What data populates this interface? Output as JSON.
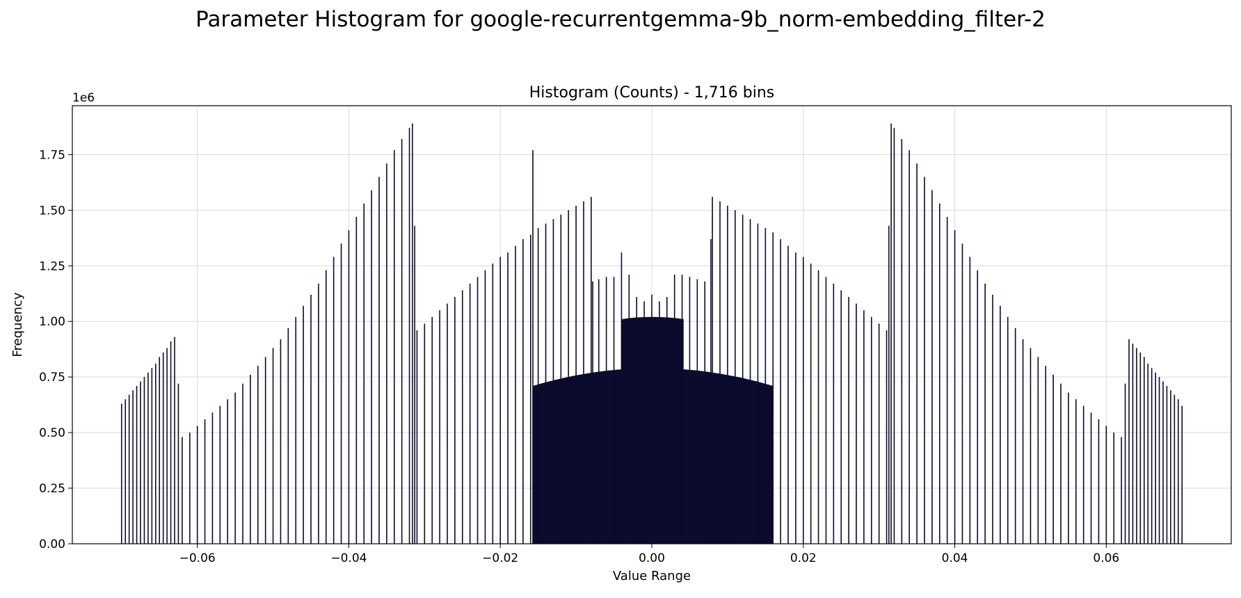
{
  "figure": {
    "suptitle": "Parameter Histogram for google-recurrentgemma-9b_norm-embedding_filter-2"
  },
  "chart_data": {
    "type": "bar",
    "title": "Histogram (Counts) - 1,716 bins",
    "xlabel": "Value Range",
    "ylabel": "Frequency",
    "y_offset_label": "1e6",
    "xlim": [
      -0.0765,
      0.0765
    ],
    "ylim": [
      0,
      1.97
    ],
    "x_ticks": [
      -0.06,
      -0.04,
      -0.02,
      0.0,
      0.02,
      0.04,
      0.06
    ],
    "x_tick_labels": [
      "−0.06",
      "−0.04",
      "−0.02",
      "0.00",
      "0.02",
      "0.04",
      "0.06"
    ],
    "y_ticks": [
      0,
      0.25,
      0.5,
      0.75,
      1.0,
      1.25,
      1.5,
      1.75
    ],
    "y_tick_labels": [
      "0.00",
      "0.25",
      "0.50",
      "0.75",
      "1.00",
      "1.25",
      "1.50",
      "1.75"
    ],
    "grid": true,
    "bar_color": "#0b0b2e",
    "y_unit_multiplier": 1000000,
    "bins": [
      {
        "x": -0.07,
        "y": 0.63
      },
      {
        "x": -0.0695,
        "y": 0.65
      },
      {
        "x": -0.069,
        "y": 0.67
      },
      {
        "x": -0.0685,
        "y": 0.69
      },
      {
        "x": -0.068,
        "y": 0.71
      },
      {
        "x": -0.0675,
        "y": 0.73
      },
      {
        "x": -0.067,
        "y": 0.75
      },
      {
        "x": -0.0665,
        "y": 0.77
      },
      {
        "x": -0.066,
        "y": 0.79
      },
      {
        "x": -0.0655,
        "y": 0.81
      },
      {
        "x": -0.065,
        "y": 0.84
      },
      {
        "x": -0.0645,
        "y": 0.86
      },
      {
        "x": -0.064,
        "y": 0.88
      },
      {
        "x": -0.0635,
        "y": 0.91
      },
      {
        "x": -0.063,
        "y": 0.93
      },
      {
        "x": -0.0625,
        "y": 0.72
      },
      {
        "x": -0.062,
        "y": 0.48
      },
      {
        "x": -0.061,
        "y": 0.5
      },
      {
        "x": -0.06,
        "y": 0.53
      },
      {
        "x": -0.059,
        "y": 0.56
      },
      {
        "x": -0.058,
        "y": 0.59
      },
      {
        "x": -0.057,
        "y": 0.62
      },
      {
        "x": -0.056,
        "y": 0.65
      },
      {
        "x": -0.055,
        "y": 0.68
      },
      {
        "x": -0.054,
        "y": 0.72
      },
      {
        "x": -0.053,
        "y": 0.76
      },
      {
        "x": -0.052,
        "y": 0.8
      },
      {
        "x": -0.051,
        "y": 0.84
      },
      {
        "x": -0.05,
        "y": 0.88
      },
      {
        "x": -0.049,
        "y": 0.92
      },
      {
        "x": -0.048,
        "y": 0.97
      },
      {
        "x": -0.047,
        "y": 1.02
      },
      {
        "x": -0.046,
        "y": 1.07
      },
      {
        "x": -0.045,
        "y": 1.12
      },
      {
        "x": -0.044,
        "y": 1.17
      },
      {
        "x": -0.043,
        "y": 1.23
      },
      {
        "x": -0.042,
        "y": 1.29
      },
      {
        "x": -0.041,
        "y": 1.35
      },
      {
        "x": -0.04,
        "y": 1.41
      },
      {
        "x": -0.039,
        "y": 1.47
      },
      {
        "x": -0.038,
        "y": 1.53
      },
      {
        "x": -0.037,
        "y": 1.59
      },
      {
        "x": -0.036,
        "y": 1.65
      },
      {
        "x": -0.035,
        "y": 1.71
      },
      {
        "x": -0.034,
        "y": 1.77
      },
      {
        "x": -0.033,
        "y": 1.82
      },
      {
        "x": -0.032,
        "y": 1.87
      },
      {
        "x": -0.0316,
        "y": 1.89
      },
      {
        "x": -0.0313,
        "y": 1.43
      },
      {
        "x": -0.031,
        "y": 0.96
      },
      {
        "x": -0.03,
        "y": 0.99
      },
      {
        "x": -0.029,
        "y": 1.02
      },
      {
        "x": -0.028,
        "y": 1.05
      },
      {
        "x": -0.027,
        "y": 1.08
      },
      {
        "x": -0.026,
        "y": 1.11
      },
      {
        "x": -0.025,
        "y": 1.14
      },
      {
        "x": -0.024,
        "y": 1.17
      },
      {
        "x": -0.023,
        "y": 1.2
      },
      {
        "x": -0.022,
        "y": 1.23
      },
      {
        "x": -0.021,
        "y": 1.26
      },
      {
        "x": -0.02,
        "y": 1.29
      },
      {
        "x": -0.019,
        "y": 1.31
      },
      {
        "x": -0.018,
        "y": 1.34
      },
      {
        "x": -0.017,
        "y": 1.37
      },
      {
        "x": -0.016,
        "y": 1.39
      },
      {
        "x": -0.0157,
        "y": 1.77
      },
      {
        "x": -0.015,
        "y": 1.42
      },
      {
        "x": -0.014,
        "y": 1.44
      },
      {
        "x": -0.013,
        "y": 1.46
      },
      {
        "x": -0.012,
        "y": 1.48
      },
      {
        "x": -0.011,
        "y": 1.5
      },
      {
        "x": -0.01,
        "y": 1.52
      },
      {
        "x": -0.009,
        "y": 1.54
      },
      {
        "x": -0.008,
        "y": 1.56
      },
      {
        "x": -0.0078,
        "y": 1.18
      },
      {
        "x": -0.007,
        "y": 1.19
      },
      {
        "x": -0.006,
        "y": 1.2
      },
      {
        "x": -0.005,
        "y": 1.2
      },
      {
        "x": -0.004,
        "y": 1.31
      },
      {
        "x": -0.003,
        "y": 1.21
      },
      {
        "x": -0.002,
        "y": 1.11
      },
      {
        "x": -0.001,
        "y": 1.09
      },
      {
        "x": 0.0,
        "y": 1.12
      },
      {
        "x": 0.001,
        "y": 1.09
      },
      {
        "x": 0.002,
        "y": 1.11
      },
      {
        "x": 0.003,
        "y": 1.21
      },
      {
        "x": 0.004,
        "y": 1.21
      },
      {
        "x": 0.005,
        "y": 1.2
      },
      {
        "x": 0.006,
        "y": 1.19
      },
      {
        "x": 0.007,
        "y": 1.18
      },
      {
        "x": 0.0078,
        "y": 1.37
      },
      {
        "x": 0.008,
        "y": 1.56
      },
      {
        "x": 0.009,
        "y": 1.54
      },
      {
        "x": 0.01,
        "y": 1.52
      },
      {
        "x": 0.011,
        "y": 1.5
      },
      {
        "x": 0.012,
        "y": 1.48
      },
      {
        "x": 0.013,
        "y": 1.46
      },
      {
        "x": 0.014,
        "y": 1.44
      },
      {
        "x": 0.015,
        "y": 1.42
      },
      {
        "x": 0.016,
        "y": 1.4
      },
      {
        "x": 0.017,
        "y": 1.37
      },
      {
        "x": 0.018,
        "y": 1.34
      },
      {
        "x": 0.019,
        "y": 1.31
      },
      {
        "x": 0.02,
        "y": 1.29
      },
      {
        "x": 0.021,
        "y": 1.26
      },
      {
        "x": 0.022,
        "y": 1.23
      },
      {
        "x": 0.023,
        "y": 1.2
      },
      {
        "x": 0.024,
        "y": 1.17
      },
      {
        "x": 0.025,
        "y": 1.14
      },
      {
        "x": 0.026,
        "y": 1.11
      },
      {
        "x": 0.027,
        "y": 1.08
      },
      {
        "x": 0.028,
        "y": 1.05
      },
      {
        "x": 0.029,
        "y": 1.02
      },
      {
        "x": 0.03,
        "y": 0.99
      },
      {
        "x": 0.031,
        "y": 0.96
      },
      {
        "x": 0.0313,
        "y": 1.43
      },
      {
        "x": 0.0316,
        "y": 1.89
      },
      {
        "x": 0.032,
        "y": 1.87
      },
      {
        "x": 0.033,
        "y": 1.82
      },
      {
        "x": 0.034,
        "y": 1.77
      },
      {
        "x": 0.035,
        "y": 1.71
      },
      {
        "x": 0.036,
        "y": 1.65
      },
      {
        "x": 0.037,
        "y": 1.59
      },
      {
        "x": 0.038,
        "y": 1.53
      },
      {
        "x": 0.039,
        "y": 1.47
      },
      {
        "x": 0.04,
        "y": 1.41
      },
      {
        "x": 0.041,
        "y": 1.35
      },
      {
        "x": 0.042,
        "y": 1.29
      },
      {
        "x": 0.043,
        "y": 1.23
      },
      {
        "x": 0.044,
        "y": 1.17
      },
      {
        "x": 0.045,
        "y": 1.12
      },
      {
        "x": 0.046,
        "y": 1.07
      },
      {
        "x": 0.047,
        "y": 1.02
      },
      {
        "x": 0.048,
        "y": 0.97
      },
      {
        "x": 0.049,
        "y": 0.92
      },
      {
        "x": 0.05,
        "y": 0.88
      },
      {
        "x": 0.051,
        "y": 0.84
      },
      {
        "x": 0.052,
        "y": 0.8
      },
      {
        "x": 0.053,
        "y": 0.76
      },
      {
        "x": 0.054,
        "y": 0.72
      },
      {
        "x": 0.055,
        "y": 0.68
      },
      {
        "x": 0.056,
        "y": 0.65
      },
      {
        "x": 0.057,
        "y": 0.62
      },
      {
        "x": 0.058,
        "y": 0.59
      },
      {
        "x": 0.059,
        "y": 0.56
      },
      {
        "x": 0.06,
        "y": 0.53
      },
      {
        "x": 0.061,
        "y": 0.5
      },
      {
        "x": 0.062,
        "y": 0.48
      },
      {
        "x": 0.0625,
        "y": 0.72
      },
      {
        "x": 0.063,
        "y": 0.92
      },
      {
        "x": 0.0635,
        "y": 0.9
      },
      {
        "x": 0.064,
        "y": 0.88
      },
      {
        "x": 0.0645,
        "y": 0.86
      },
      {
        "x": 0.065,
        "y": 0.84
      },
      {
        "x": 0.0655,
        "y": 0.81
      },
      {
        "x": 0.066,
        "y": 0.79
      },
      {
        "x": 0.0665,
        "y": 0.77
      },
      {
        "x": 0.067,
        "y": 0.75
      },
      {
        "x": 0.0675,
        "y": 0.73
      },
      {
        "x": 0.068,
        "y": 0.71
      },
      {
        "x": 0.0685,
        "y": 0.69
      },
      {
        "x": 0.069,
        "y": 0.67
      },
      {
        "x": 0.0695,
        "y": 0.65
      },
      {
        "x": 0.07,
        "y": 0.62
      }
    ],
    "dense_regions": [
      {
        "x0": -0.0157,
        "x1": 0.016,
        "y_start": 0.71,
        "y_peak": 0.79
      },
      {
        "x0": -0.004,
        "x1": 0.0042,
        "y_start": 1.01,
        "y_peak": 1.02
      }
    ]
  }
}
